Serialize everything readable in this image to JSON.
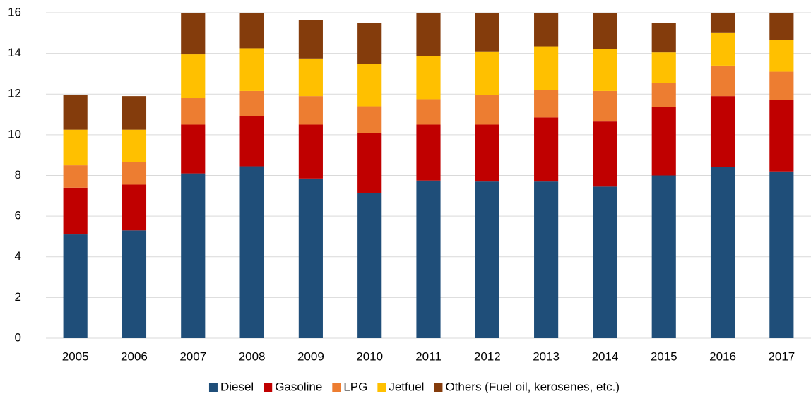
{
  "chart_data": {
    "type": "stacked_bar",
    "categories": [
      "2005",
      "2006",
      "2007",
      "2008",
      "2009",
      "2010",
      "2011",
      "2012",
      "2013",
      "2014",
      "2015",
      "2016",
      "2017"
    ],
    "series": [
      {
        "name": "Diesel",
        "color": "#1f4e79",
        "values": [
          5.1,
          5.3,
          8.1,
          8.45,
          7.85,
          7.15,
          7.75,
          7.7,
          7.7,
          7.45,
          8.0,
          8.4,
          8.2
        ]
      },
      {
        "name": "Gasoline",
        "color": "#c00000",
        "values": [
          2.3,
          2.25,
          2.4,
          2.45,
          2.65,
          2.95,
          2.75,
          2.8,
          3.15,
          3.2,
          3.35,
          3.5,
          3.5
        ]
      },
      {
        "name": "LPG",
        "color": "#ed7d31",
        "values": [
          1.1,
          1.1,
          1.3,
          1.25,
          1.4,
          1.3,
          1.25,
          1.45,
          1.35,
          1.5,
          1.2,
          1.5,
          1.4
        ]
      },
      {
        "name": "Jetfuel",
        "color": "#ffc000",
        "values": [
          1.75,
          1.6,
          2.15,
          2.1,
          1.85,
          2.1,
          2.1,
          2.15,
          2.15,
          2.05,
          1.5,
          1.6,
          1.55
        ]
      },
      {
        "name": "Others (Fuel oil, kerosenes, etc.)",
        "color": "#843c0c",
        "values": [
          1.7,
          1.65,
          2.1,
          1.8,
          1.9,
          2.0,
          2.2,
          1.9,
          1.65,
          1.8,
          1.45,
          1.0,
          1.4
        ]
      }
    ],
    "ylim": [
      0,
      16
    ],
    "yticks": [
      0,
      2,
      4,
      6,
      8,
      10,
      12,
      14,
      16
    ],
    "grid": true,
    "legend": "bottom"
  }
}
